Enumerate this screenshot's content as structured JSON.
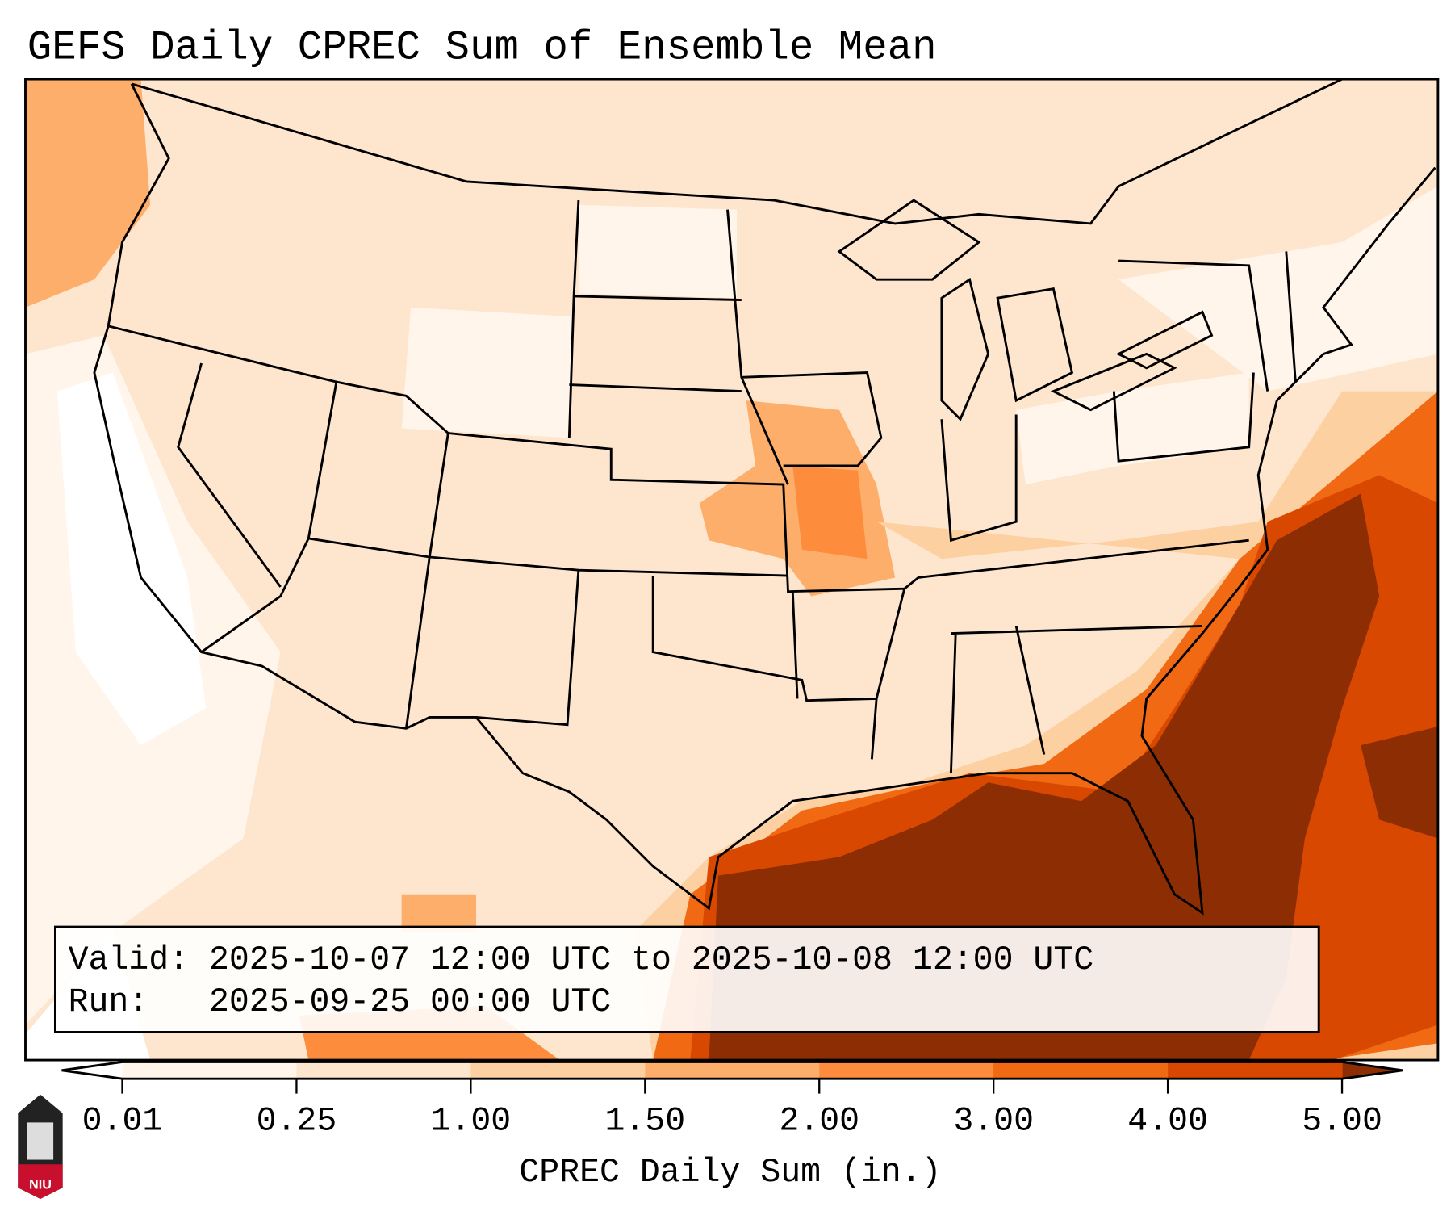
{
  "title": "GEFS Daily CPREC Sum of Ensemble Mean",
  "info": {
    "valid_line": "Valid: 2025-10-07 12:00 UTC to 2025-10-08 12:00 UTC",
    "run_line": "Run:   2025-09-25 00:00 UTC"
  },
  "colorbar": {
    "label": "CPREC Daily Sum (in.)",
    "ticks": [
      "0.01",
      "0.25",
      "1.00",
      "1.50",
      "2.00",
      "3.00",
      "4.00",
      "5.00"
    ],
    "colors": [
      "#fff5eb",
      "#fee6ce",
      "#fdd0a2",
      "#fdae6b",
      "#fd8d3c",
      "#f16913",
      "#d94801"
    ],
    "under_color": "#ffffff",
    "over_color": "#8c2d04"
  },
  "logo": {
    "text": "NIU"
  }
}
